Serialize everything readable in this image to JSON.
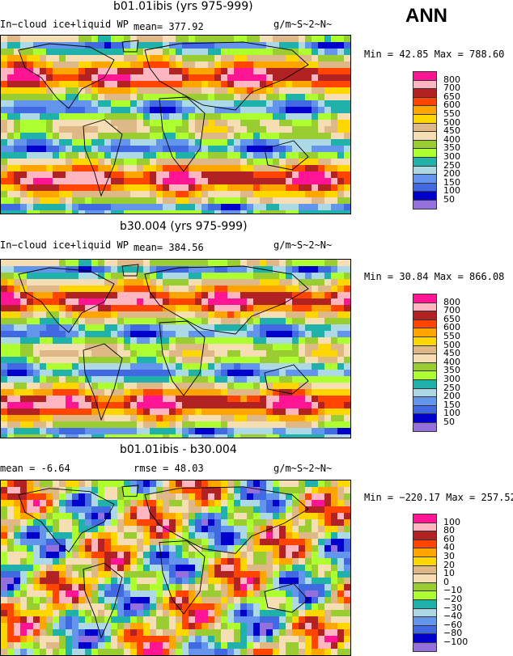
{
  "header": {
    "season": "ANN"
  },
  "palettes": {
    "field": [
      "#9370db",
      "#0000cd",
      "#4169e1",
      "#6495ed",
      "#add8e6",
      "#20b2aa",
      "#adff2f",
      "#9acd32",
      "#f5deb3",
      "#deb887",
      "#ffd700",
      "#ffa500",
      "#ff4500",
      "#b22222",
      "#ffb6c1",
      "#ff1493"
    ],
    "diff": [
      "#9370db",
      "#0000cd",
      "#4169e1",
      "#6495ed",
      "#add8e6",
      "#20b2aa",
      "#adff2f",
      "#9acd32",
      "#f5deb3",
      "#deb887",
      "#ffd700",
      "#ffa500",
      "#ff4500",
      "#b22222",
      "#ffb6c1",
      "#ff1493"
    ]
  },
  "panels": [
    {
      "title": "b01.01ibis (yrs 975-999)",
      "left_label": "In−cloud ice+liquid WP",
      "stat_label": "mean=",
      "stat_value": "377.92",
      "units": "g/m~S~2~N~",
      "minmax": "Min =  42.85 Max = 788.60",
      "colorbar_labels": [
        "800",
        "700",
        "650",
        "600",
        "550",
        "500",
        "450",
        "400",
        "350",
        "300",
        "250",
        "200",
        "150",
        "100",
        "50"
      ],
      "palette": "field"
    },
    {
      "title": "b30.004 (yrs 975-999)",
      "left_label": "In−cloud ice+liquid WP",
      "stat_label": "mean=",
      "stat_value": "384.56",
      "units": "g/m~S~2~N~",
      "minmax": "Min =  30.84 Max = 866.08",
      "colorbar_labels": [
        "800",
        "700",
        "650",
        "600",
        "550",
        "500",
        "450",
        "400",
        "350",
        "300",
        "250",
        "200",
        "150",
        "100",
        "50"
      ],
      "palette": "field"
    },
    {
      "title": "b01.01ibis - b30.004",
      "left_label": "mean =",
      "stat_label": "",
      "stat_value": "-6.64",
      "rmse_label": "rmse =",
      "rmse_value": "48.03",
      "units": "g/m~S~2~N~",
      "minmax": "Min = −220.17 Max = 257.52",
      "colorbar_labels": [
        "100",
        "80",
        "60",
        "40",
        "30",
        "20",
        "10",
        "0",
        "−10",
        "−20",
        "−30",
        "−40",
        "−60",
        "−80",
        "−100"
      ],
      "palette": "diff"
    }
  ],
  "chart_data": [
    {
      "type": "heatmap",
      "title": "b01.01ibis (yrs 975-999)",
      "variable": "In-cloud ice+liquid WP",
      "units": "g/m~S~2~N~",
      "mean": 377.92,
      "min": 42.85,
      "max": 788.6,
      "contour_levels": [
        50,
        100,
        150,
        200,
        250,
        300,
        350,
        400,
        450,
        500,
        550,
        600,
        650,
        700,
        800
      ]
    },
    {
      "type": "heatmap",
      "title": "b30.004 (yrs 975-999)",
      "variable": "In-cloud ice+liquid WP",
      "units": "g/m~S~2~N~",
      "mean": 384.56,
      "min": 30.84,
      "max": 866.08,
      "contour_levels": [
        50,
        100,
        150,
        200,
        250,
        300,
        350,
        400,
        450,
        500,
        550,
        600,
        650,
        700,
        800
      ]
    },
    {
      "type": "heatmap",
      "title": "b01.01ibis - b30.004",
      "units": "g/m~S~2~N~",
      "mean": -6.64,
      "rmse": 48.03,
      "min": -220.17,
      "max": 257.52,
      "contour_levels": [
        -100,
        -80,
        -60,
        -40,
        -30,
        -20,
        -10,
        0,
        10,
        20,
        30,
        40,
        60,
        80,
        100
      ]
    }
  ]
}
